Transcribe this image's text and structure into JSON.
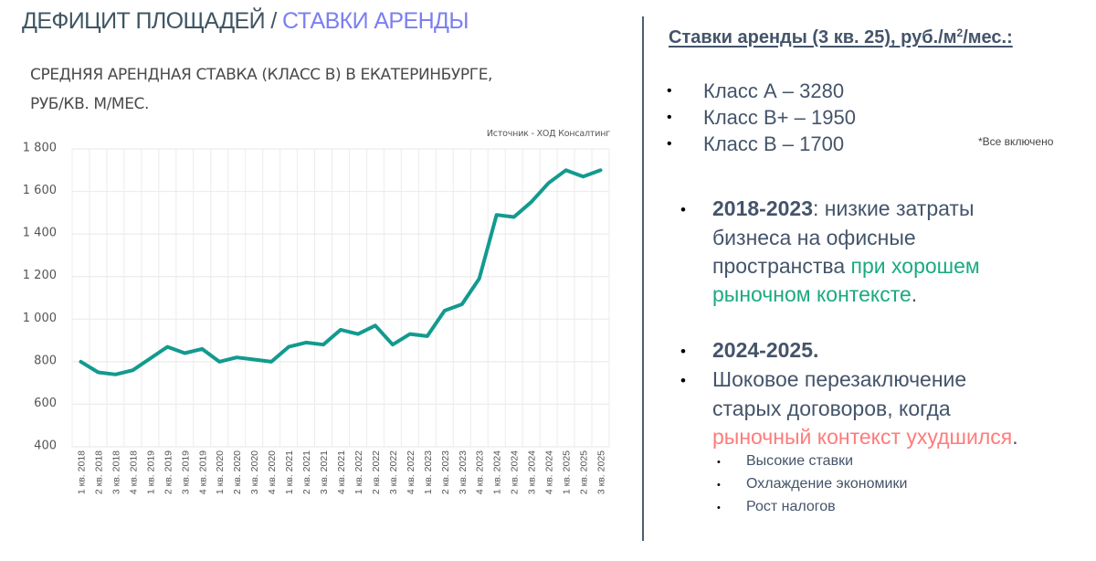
{
  "header": {
    "title_main": "ДЕФИЦИТ ПЛОЩАДЕЙ / ",
    "title_accent": "СТАВКИ АРЕНДЫ",
    "accent_color": "#7b7ff0"
  },
  "chart": {
    "title_line1": "СРЕДНЯЯ АРЕНДНАЯ СТАВКА (КЛАСС В) В ЕКАТЕРИНБУРГЕ,",
    "title_line2": "РУБ/КВ. М/МЕС.",
    "source": "Источник - ХОД Консалтинг",
    "line_color": "#139a8e"
  },
  "chart_data": {
    "type": "line",
    "title": "СРЕДНЯЯ АРЕНДНАЯ СТАВКА (КЛАСС В) В ЕКАТЕРИНБУРГЕ, РУБ/КВ. М/МЕС.",
    "source": "Источник - ХОД Консалтинг",
    "xlabel": "",
    "ylabel": "",
    "ylim": [
      400,
      1800
    ],
    "yticks": [
      400,
      600,
      800,
      1000,
      1200,
      1400,
      1600,
      1800
    ],
    "ytick_labels": [
      "400",
      "600",
      "800",
      "1 000",
      "1 200",
      "1 400",
      "1 600",
      "1 800"
    ],
    "grid": true,
    "legend": "none",
    "categories": [
      "1 кв. 2018",
      "2 кв. 2018",
      "3 кв. 2018",
      "4 кв. 2018",
      "1 кв. 2019",
      "2 кв. 2019",
      "3 кв. 2019",
      "4 кв. 2019",
      "1 кв. 2020",
      "2 кв. 2020",
      "3 кв. 2020",
      "4 кв. 2020",
      "1 кв. 2021",
      "2 кв. 2021",
      "3 кв. 2021",
      "4 кв. 2021",
      "1 кв. 2022",
      "2 кв. 2022",
      "3 кв. 2022",
      "4 кв. 2022",
      "1 кв. 2023",
      "2 кв. 2023",
      "3 кв. 2023",
      "4 кв. 2023",
      "1 кв. 2024",
      "2 кв. 2024",
      "3 кв. 2024",
      "4 кв. 2024",
      "1 кв. 2025",
      "2 кв. 2025",
      "3 кв. 2025"
    ],
    "series": [
      {
        "name": "Класс B",
        "values": [
          800,
          750,
          740,
          760,
          815,
          870,
          840,
          860,
          800,
          820,
          810,
          800,
          870,
          890,
          880,
          950,
          930,
          970,
          880,
          930,
          920,
          1040,
          1070,
          1190,
          1490,
          1480,
          1550,
          1640,
          1700,
          1670,
          1700
        ]
      }
    ]
  },
  "rates": {
    "heading_pre": "Ставки аренды (3 кв. 25), руб./м",
    "heading_sup": "2",
    "heading_post": "/мес.:",
    "items": [
      {
        "bullet": "•",
        "label": "Класс А – 3280"
      },
      {
        "bullet": "•",
        "label": "Класс В+ – 1950"
      },
      {
        "bullet": "•",
        "label": "Класс В – 1700"
      }
    ],
    "note": "*Все включено"
  },
  "period1": {
    "bullet": "•",
    "year": "2018-2023",
    "line1_rest": ": низкие затраты",
    "line2": "бизнеса на офисные",
    "line3_plain": "пространства ",
    "line3_green": "при хорошем",
    "line4_green": "рыночном контексте",
    "line4_end": "."
  },
  "period2": {
    "bullet": "•",
    "year": "2024-2025.",
    "bullet2": "•",
    "line1": "Шоковое перезаключение",
    "line2": "старых договоров, когда",
    "line3_red": "рыночный контекст ухудшился",
    "line3_end": ".",
    "sub_items": [
      {
        "bullet": "•",
        "label": "Высокие ставки"
      },
      {
        "bullet": "•",
        "label": "Охлаждение экономики"
      },
      {
        "bullet": "•",
        "label": "Рост налогов"
      }
    ]
  },
  "colors": {
    "text": "#44546a",
    "green": "#1aaa80",
    "red": "#ff7b7b",
    "divider": "#4a6070",
    "grid": "#ececec"
  }
}
